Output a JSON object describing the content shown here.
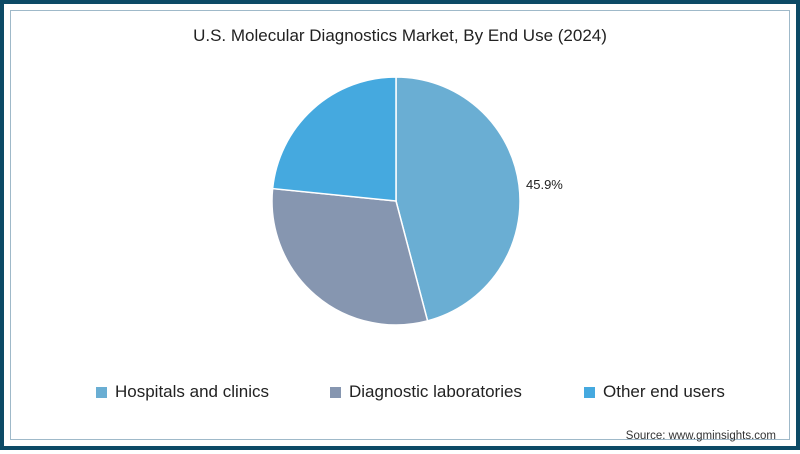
{
  "chart_data": {
    "type": "pie",
    "title": "U.S. Molecular Diagnostics Market, By End Use (2024)",
    "categories": [
      "Hospitals and clinics",
      "Diagnostic laboratories",
      "Other end users"
    ],
    "values": [
      45.9,
      30.7,
      23.4
    ],
    "colors": [
      "#6aaed3",
      "#8696b0",
      "#45a9df"
    ],
    "data_labels": [
      "45.9%",
      "",
      ""
    ],
    "legend_position": "bottom",
    "start_angle": "top, clockwise",
    "source": "Source: www.gminsights.com"
  },
  "chart": {
    "title": "U.S. Molecular Diagnostics Market, By End Use (2024)",
    "data_label": "45.9%",
    "legend": [
      {
        "label": "Hospitals and clinics",
        "color": "#6aaed3"
      },
      {
        "label": "Diagnostic laboratories",
        "color": "#8696b0"
      },
      {
        "label": "Other end users",
        "color": "#45a9df"
      }
    ],
    "source": "Source: www.gminsights.com"
  },
  "theme": {
    "border_color": "#0d4a66",
    "background": "#ffffff"
  }
}
